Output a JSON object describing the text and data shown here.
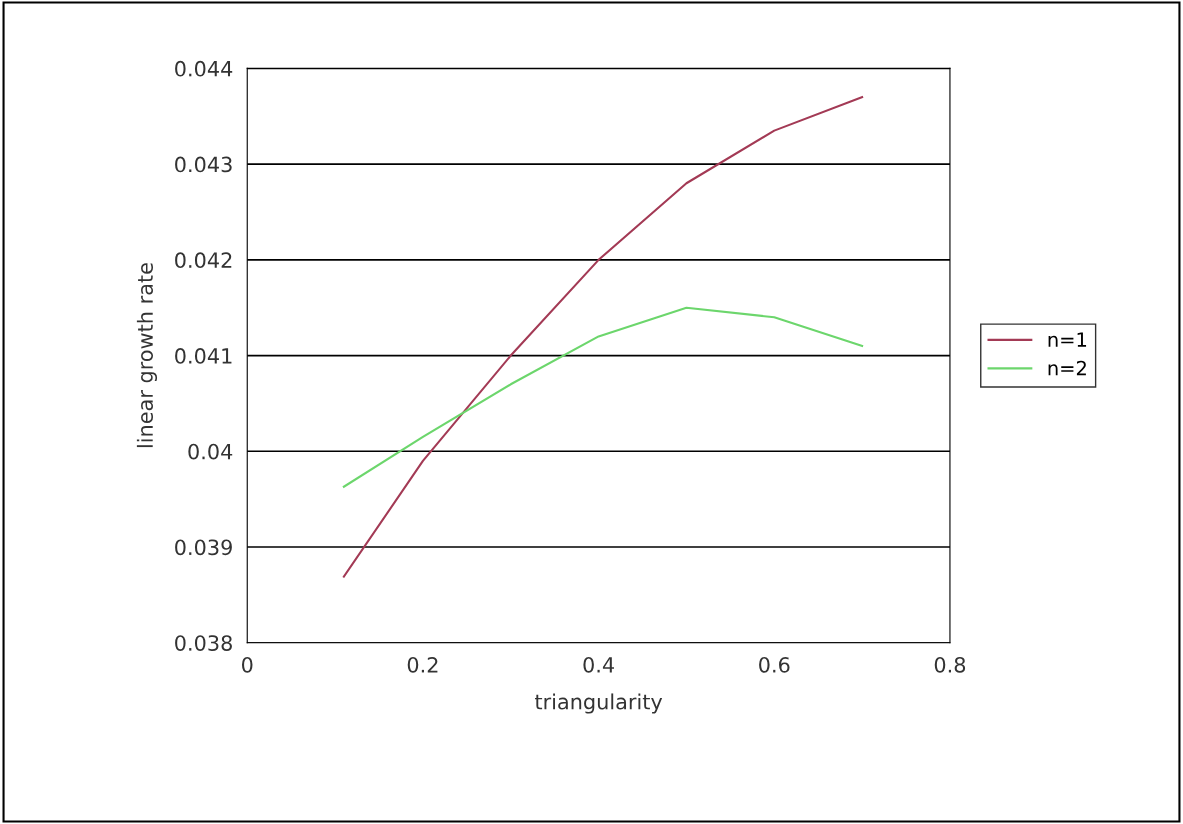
{
  "chart_data": {
    "type": "line",
    "xlabel": "triangularity",
    "ylabel": "linear growth rate",
    "x": [
      0.11,
      0.2,
      0.3,
      0.4,
      0.5,
      0.6,
      0.7
    ],
    "series": [
      {
        "name": "n=1",
        "color": "#a33a55",
        "values": [
          0.03869,
          0.0399,
          0.041,
          0.042,
          0.0428,
          0.04335,
          0.0437
        ]
      },
      {
        "name": "n=2",
        "color": "#6cd66c",
        "values": [
          0.03963,
          0.04015,
          0.0407,
          0.0412,
          0.0415,
          0.0414,
          0.0411
        ]
      }
    ],
    "xlim": [
      0,
      0.8
    ],
    "xticks": [
      0,
      0.2,
      0.4,
      0.6,
      0.8
    ],
    "ylim": [
      0.038,
      0.044
    ],
    "yticks": [
      0.038,
      0.039,
      0.04,
      0.041,
      0.042,
      0.043,
      0.044
    ],
    "grid": "y",
    "legend": "right",
    "marker": "none",
    "line_style": "solid"
  }
}
